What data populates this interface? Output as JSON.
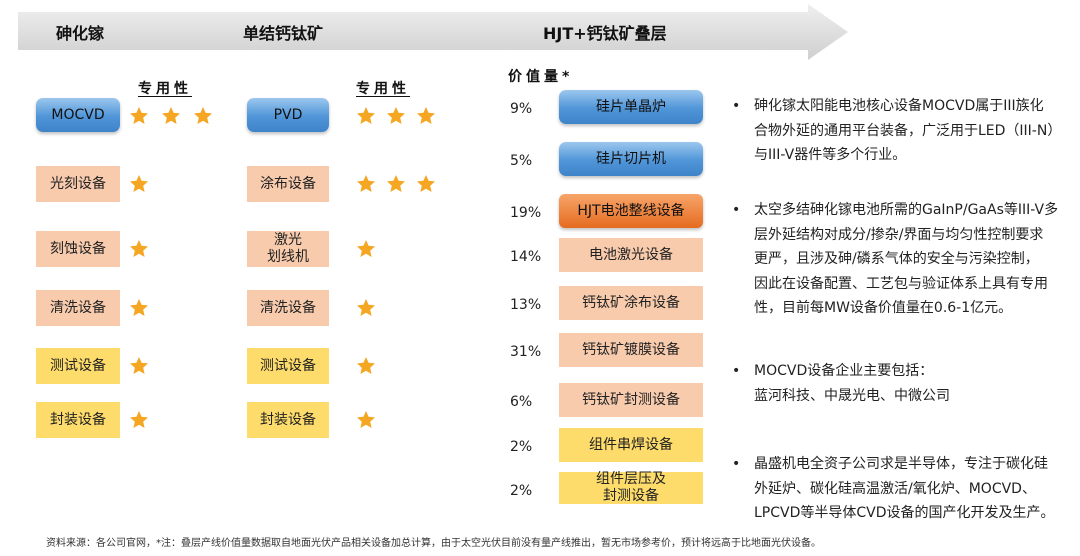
{
  "header": {
    "col1": "砷化镓",
    "col2": "单结钙钛矿",
    "col3": "HJT+钙钛矿叠层"
  },
  "gaas": {
    "title": "专用性",
    "items": [
      {
        "label": "MOCVD",
        "stars": 3,
        "style": "blue"
      },
      {
        "label": "光刻设备",
        "stars": 1,
        "style": "peach"
      },
      {
        "label": "刻蚀设备",
        "stars": 1,
        "style": "peach"
      },
      {
        "label": "清洗设备",
        "stars": 1,
        "style": "peach"
      },
      {
        "label": "测试设备",
        "stars": 1,
        "style": "yellow"
      },
      {
        "label": "封装设备",
        "stars": 1,
        "style": "yellow"
      }
    ]
  },
  "perovskite": {
    "title": "专用性",
    "items": [
      {
        "label": "PVD",
        "stars": 3,
        "style": "blue"
      },
      {
        "label": "涂布设备",
        "stars": 3,
        "style": "peach"
      },
      {
        "label": "激光\n划线机",
        "stars": 1,
        "style": "peach"
      },
      {
        "label": "清洗设备",
        "stars": 1,
        "style": "peach"
      },
      {
        "label": "测试设备",
        "stars": 1,
        "style": "yellow"
      },
      {
        "label": "封装设备",
        "stars": 1,
        "style": "yellow"
      }
    ]
  },
  "tandem": {
    "title": "价值量*",
    "items": [
      {
        "pct": "9%",
        "label": "硅片单晶炉",
        "value_pct": 9,
        "style": "blue"
      },
      {
        "pct": "5%",
        "label": "硅片切片机",
        "value_pct": 5,
        "style": "blue"
      },
      {
        "pct": "19%",
        "label": "HJT电池整线设备",
        "value_pct": 19,
        "style": "orange"
      },
      {
        "pct": "14%",
        "label": "电池激光设备",
        "value_pct": 14,
        "style": "peach"
      },
      {
        "pct": "13%",
        "label": "钙钛矿涂布设备",
        "value_pct": 13,
        "style": "peach"
      },
      {
        "pct": "31%",
        "label": "钙钛矿镀膜设备",
        "value_pct": 31,
        "style": "peach"
      },
      {
        "pct": "6%",
        "label": "钙钛矿封测设备",
        "value_pct": 6,
        "style": "peach"
      },
      {
        "pct": "2%",
        "label": "组件串焊设备",
        "value_pct": 2,
        "style": "yellow"
      },
      {
        "pct": "2%",
        "label": "组件层压及\n封测设备",
        "value_pct": 2,
        "style": "yellow"
      }
    ]
  },
  "bullets": [
    {
      "dot": "•",
      "lines": [
        "砷化镓太阳能电池核心设备MOCVD属于III族化",
        "合物外延的通用平台装备，广泛用于LED（III-N）",
        "与III-V器件等多个行业。"
      ]
    },
    {
      "dot": "•",
      "lines": [
        "太空多结砷化镓电池所需的GaInP/GaAs等III-V多",
        "层外延结构对成分/掺杂/界面与均匀性控制要求",
        "更严，且涉及砷/磷系气体的安全与污染控制，",
        "因此在设备配置、工艺包与验证体系上具有专用",
        "性，目前每MW设备价值量在0.6-1亿元。"
      ]
    },
    {
      "dot": "•",
      "lines": [
        "MOCVD设备企业主要包括：",
        "蓝河科技、中晟光电、中微公司"
      ]
    },
    {
      "dot": "•",
      "lines": [
        "晶盛机电全资子公司求是半导体，专注于碳化硅",
        "外延炉、碳化硅高温激活/氧化炉、MOCVD、",
        "LPCVD等半导体CVD设备的国产化开发及生产。"
      ]
    }
  ],
  "footnote": "资料来源：各公司官网，*注：叠层产线价值量数据取自地面光伏产品相关设备加总计算，由于太空光伏目前没有量产线推出，暂无市场参考价，预计将远高于比地面光伏设备。",
  "colors": {
    "banner": "#d9d9d9",
    "blue_box": "#5b9bd5",
    "peach_box": "#f8cbad",
    "yellow_box": "#fedc6b",
    "orange_box": "#ed7d31",
    "star": "#f5a623"
  }
}
